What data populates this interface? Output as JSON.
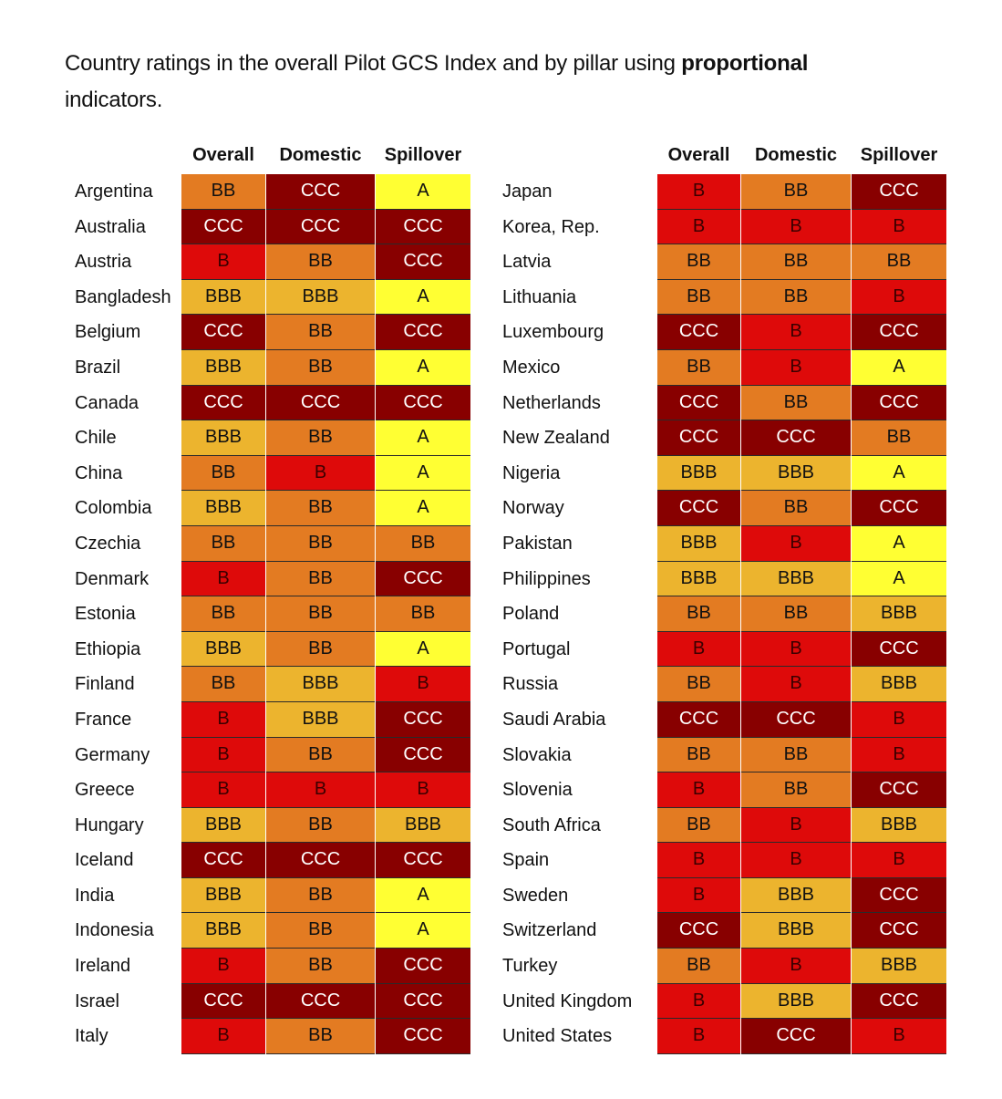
{
  "caption": {
    "text_before": "Country ratings in the overall Pilot GCS Index and by pillar using ",
    "bold_word": "proportional",
    "text_after": " indicators."
  },
  "columns": [
    "Overall",
    "Domestic",
    "Spillover"
  ],
  "rating_colors": {
    "A": "#ffff33",
    "BBB": "#ecb42e",
    "BB": "#e37b22",
    "B": "#de0a0a",
    "CCC": "#880000"
  },
  "left_table": [
    {
      "country": "Argentina",
      "overall": "BB",
      "domestic": "CCC",
      "spillover": "A"
    },
    {
      "country": "Australia",
      "overall": "CCC",
      "domestic": "CCC",
      "spillover": "CCC"
    },
    {
      "country": "Austria",
      "overall": "B",
      "domestic": "BB",
      "spillover": "CCC"
    },
    {
      "country": "Bangladesh",
      "overall": "BBB",
      "domestic": "BBB",
      "spillover": "A"
    },
    {
      "country": "Belgium",
      "overall": "CCC",
      "domestic": "BB",
      "spillover": "CCC"
    },
    {
      "country": "Brazil",
      "overall": "BBB",
      "domestic": "BB",
      "spillover": "A"
    },
    {
      "country": "Canada",
      "overall": "CCC",
      "domestic": "CCC",
      "spillover": "CCC"
    },
    {
      "country": "Chile",
      "overall": "BBB",
      "domestic": "BB",
      "spillover": "A"
    },
    {
      "country": "China",
      "overall": "BB",
      "domestic": "B",
      "spillover": "A"
    },
    {
      "country": "Colombia",
      "overall": "BBB",
      "domestic": "BB",
      "spillover": "A"
    },
    {
      "country": "Czechia",
      "overall": "BB",
      "domestic": "BB",
      "spillover": "BB"
    },
    {
      "country": "Denmark",
      "overall": "B",
      "domestic": "BB",
      "spillover": "CCC"
    },
    {
      "country": "Estonia",
      "overall": "BB",
      "domestic": "BB",
      "spillover": "BB"
    },
    {
      "country": "Ethiopia",
      "overall": "BBB",
      "domestic": "BB",
      "spillover": "A"
    },
    {
      "country": "Finland",
      "overall": "BB",
      "domestic": "BBB",
      "spillover": "B"
    },
    {
      "country": "France",
      "overall": "B",
      "domestic": "BBB",
      "spillover": "CCC"
    },
    {
      "country": "Germany",
      "overall": "B",
      "domestic": "BB",
      "spillover": "CCC"
    },
    {
      "country": "Greece",
      "overall": "B",
      "domestic": "B",
      "spillover": "B"
    },
    {
      "country": "Hungary",
      "overall": "BBB",
      "domestic": "BB",
      "spillover": "BBB"
    },
    {
      "country": "Iceland",
      "overall": "CCC",
      "domestic": "CCC",
      "spillover": "CCC"
    },
    {
      "country": "India",
      "overall": "BBB",
      "domestic": "BB",
      "spillover": "A"
    },
    {
      "country": "Indonesia",
      "overall": "BBB",
      "domestic": "BB",
      "spillover": "A"
    },
    {
      "country": "Ireland",
      "overall": "B",
      "domestic": "BB",
      "spillover": "CCC"
    },
    {
      "country": "Israel",
      "overall": "CCC",
      "domestic": "CCC",
      "spillover": "CCC"
    },
    {
      "country": "Italy",
      "overall": "B",
      "domestic": "BB",
      "spillover": "CCC"
    }
  ],
  "right_table": [
    {
      "country": "Japan",
      "overall": "B",
      "domestic": "BB",
      "spillover": "CCC"
    },
    {
      "country": "Korea, Rep.",
      "overall": "B",
      "domestic": "B",
      "spillover": "B"
    },
    {
      "country": "Latvia",
      "overall": "BB",
      "domestic": "BB",
      "spillover": "BB"
    },
    {
      "country": "Lithuania",
      "overall": "BB",
      "domestic": "BB",
      "spillover": "B"
    },
    {
      "country": "Luxembourg",
      "overall": "CCC",
      "domestic": "B",
      "spillover": "CCC"
    },
    {
      "country": "Mexico",
      "overall": "BB",
      "domestic": "B",
      "spillover": "A"
    },
    {
      "country": "Netherlands",
      "overall": "CCC",
      "domestic": "BB",
      "spillover": "CCC"
    },
    {
      "country": "New Zealand",
      "overall": "CCC",
      "domestic": "CCC",
      "spillover": "BB"
    },
    {
      "country": "Nigeria",
      "overall": "BBB",
      "domestic": "BBB",
      "spillover": "A"
    },
    {
      "country": "Norway",
      "overall": "CCC",
      "domestic": "BB",
      "spillover": "CCC"
    },
    {
      "country": "Pakistan",
      "overall": "BBB",
      "domestic": "B",
      "spillover": "A"
    },
    {
      "country": "Philippines",
      "overall": "BBB",
      "domestic": "BBB",
      "spillover": "A"
    },
    {
      "country": "Poland",
      "overall": "BB",
      "domestic": "BB",
      "spillover": "BBB"
    },
    {
      "country": "Portugal",
      "overall": "B",
      "domestic": "B",
      "spillover": "CCC"
    },
    {
      "country": "Russia",
      "overall": "BB",
      "domestic": "B",
      "spillover": "BBB"
    },
    {
      "country": "Saudi Arabia",
      "overall": "CCC",
      "domestic": "CCC",
      "spillover": "B"
    },
    {
      "country": "Slovakia",
      "overall": "BB",
      "domestic": "BB",
      "spillover": "B"
    },
    {
      "country": "Slovenia",
      "overall": "B",
      "domestic": "BB",
      "spillover": "CCC"
    },
    {
      "country": "South Africa",
      "overall": "BB",
      "domestic": "B",
      "spillover": "BBB"
    },
    {
      "country": "Spain",
      "overall": "B",
      "domestic": "B",
      "spillover": "B"
    },
    {
      "country": "Sweden",
      "overall": "B",
      "domestic": "BBB",
      "spillover": "CCC"
    },
    {
      "country": "Switzerland",
      "overall": "CCC",
      "domestic": "BBB",
      "spillover": "CCC"
    },
    {
      "country": "Turkey",
      "overall": "BB",
      "domestic": "B",
      "spillover": "BBB"
    },
    {
      "country": "United Kingdom",
      "overall": "B",
      "domestic": "BBB",
      "spillover": "CCC"
    },
    {
      "country": "United States",
      "overall": "B",
      "domestic": "CCC",
      "spillover": "B"
    }
  ]
}
